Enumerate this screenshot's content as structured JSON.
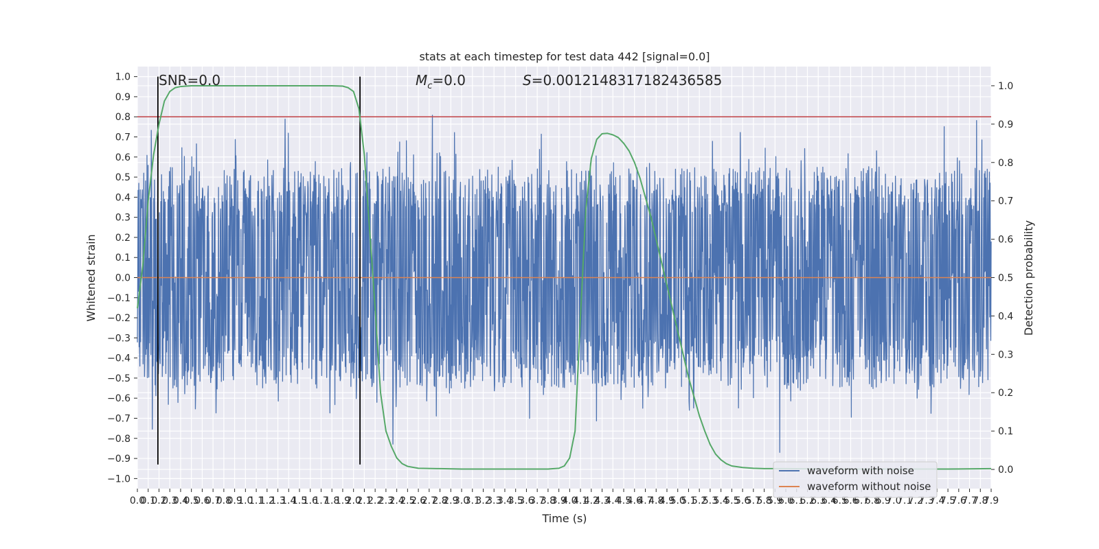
{
  "chart_data": {
    "type": "line",
    "title": "stats at each timestep for test data 442 [signal=0.0]",
    "xlabel": "Time (s)",
    "ylabel": "Whitened strain",
    "ylabel_right": "Detection probability",
    "xlim": [
      0.0,
      7.9
    ],
    "ylim": [
      -1.05,
      1.05
    ],
    "ylim_right": [
      -0.05,
      1.05
    ],
    "grid": true,
    "legend_position": "lower-right",
    "x_tick_labels": [
      "0.0",
      "0.1",
      "0.2",
      "0.3",
      "0.4",
      "0.5",
      "0.6",
      "0.7",
      "0.8",
      "0.9",
      "1.0",
      "1.1",
      "1.2",
      "1.3",
      "1.4",
      "1.5",
      "1.6",
      "1.7",
      "1.8",
      "1.9",
      "2.0",
      "2.1",
      "2.2",
      "2.3",
      "2.4",
      "2.5",
      "2.6",
      "2.7",
      "2.8",
      "2.9",
      "3.0",
      "3.1",
      "3.2",
      "3.3",
      "3.4",
      "3.5",
      "3.6",
      "3.7",
      "3.8",
      "3.9",
      "4.0",
      "4.1",
      "4.2",
      "4.3",
      "4.4",
      "4.5",
      "4.6",
      "4.7",
      "4.8",
      "4.9",
      "5.0",
      "5.1",
      "5.2",
      "5.3",
      "5.4",
      "5.5",
      "5.6",
      "5.7",
      "5.8",
      "5.9",
      "6.0",
      "6.1",
      "6.2",
      "6.3",
      "6.4",
      "6.5",
      "6.6",
      "6.7",
      "6.8",
      "6.9",
      "7.0",
      "7.1",
      "7.2",
      "7.3",
      "7.4",
      "7.5",
      "7.6",
      "7.7",
      "7.8",
      "7.9"
    ],
    "y_tick_labels": [
      "1.0",
      "0.9",
      "0.8",
      "0.7",
      "0.6",
      "0.5",
      "0.4",
      "0.3",
      "0.2",
      "0.1",
      "0.0",
      "−0.1",
      "−0.2",
      "−0.3",
      "−0.4",
      "−0.5",
      "−0.6",
      "−0.7",
      "−0.8",
      "−0.9",
      "−1.0"
    ],
    "y_right_tick_labels": [
      "1.0",
      "0.9",
      "0.8",
      "0.7",
      "0.6",
      "0.5",
      "0.4",
      "0.3",
      "0.2",
      "0.1",
      "0.0"
    ],
    "annotations": {
      "snr": "SNR=0.0",
      "mc_symbol": "M",
      "mc_sub": "c",
      "mc_value": "=0.0",
      "s_symbol": "S",
      "s_value": "=0.0012148317182436585"
    },
    "series": [
      {
        "name": "waveform with noise",
        "color": "#4c72b0",
        "kind": "noise",
        "x_range": [
          0.0,
          7.9
        ],
        "typical_amplitude": 0.45,
        "peak_amplitude": 1.0
      },
      {
        "name": "waveform without noise",
        "color": "#dd8452",
        "x": [
          0.0,
          7.9
        ],
        "y": [
          0.0,
          0.0
        ]
      },
      {
        "name": "detection probability",
        "color": "#55a868",
        "axis": "right",
        "x": [
          0.0,
          0.05,
          0.1,
          0.15,
          0.2,
          0.25,
          0.3,
          0.35,
          0.4,
          0.45,
          0.5,
          0.7,
          1.0,
          1.5,
          1.8,
          1.9,
          1.95,
          2.0,
          2.05,
          2.1,
          2.15,
          2.2,
          2.25,
          2.3,
          2.35,
          2.4,
          2.45,
          2.5,
          2.6,
          2.8,
          3.0,
          3.5,
          3.8,
          3.9,
          3.95,
          4.0,
          4.05,
          4.1,
          4.15,
          4.2,
          4.25,
          4.3,
          4.35,
          4.4,
          4.45,
          4.5,
          4.55,
          4.6,
          4.65,
          4.7,
          4.75,
          4.8,
          4.85,
          4.9,
          4.95,
          5.0,
          5.05,
          5.1,
          5.15,
          5.2,
          5.25,
          5.3,
          5.35,
          5.4,
          5.45,
          5.5,
          5.6,
          5.7,
          5.8,
          6.0,
          6.5,
          7.0,
          7.5,
          7.9
        ],
        "y": [
          0.42,
          0.53,
          0.7,
          0.82,
          0.9,
          0.96,
          0.985,
          0.995,
          0.998,
          0.999,
          1.0,
          1.0,
          1.0,
          1.0,
          1.0,
          0.999,
          0.995,
          0.985,
          0.94,
          0.82,
          0.62,
          0.42,
          0.2,
          0.1,
          0.06,
          0.03,
          0.015,
          0.008,
          0.003,
          0.002,
          0.001,
          0.001,
          0.001,
          0.003,
          0.009,
          0.03,
          0.1,
          0.4,
          0.68,
          0.81,
          0.86,
          0.875,
          0.876,
          0.872,
          0.865,
          0.85,
          0.83,
          0.8,
          0.76,
          0.71,
          0.66,
          0.6,
          0.54,
          0.48,
          0.42,
          0.36,
          0.3,
          0.24,
          0.19,
          0.14,
          0.1,
          0.065,
          0.04,
          0.025,
          0.015,
          0.009,
          0.005,
          0.003,
          0.002,
          0.002,
          0.001,
          0.001,
          0.001,
          0.002
        ]
      }
    ],
    "threshold_line": {
      "y": 0.8,
      "color": "#c44e52"
    },
    "vertical_markers": [
      {
        "x": 0.19,
        "y_range": [
          -0.93,
          1.0
        ]
      },
      {
        "x": 2.06,
        "y_range": [
          -0.93,
          1.0
        ]
      }
    ]
  }
}
